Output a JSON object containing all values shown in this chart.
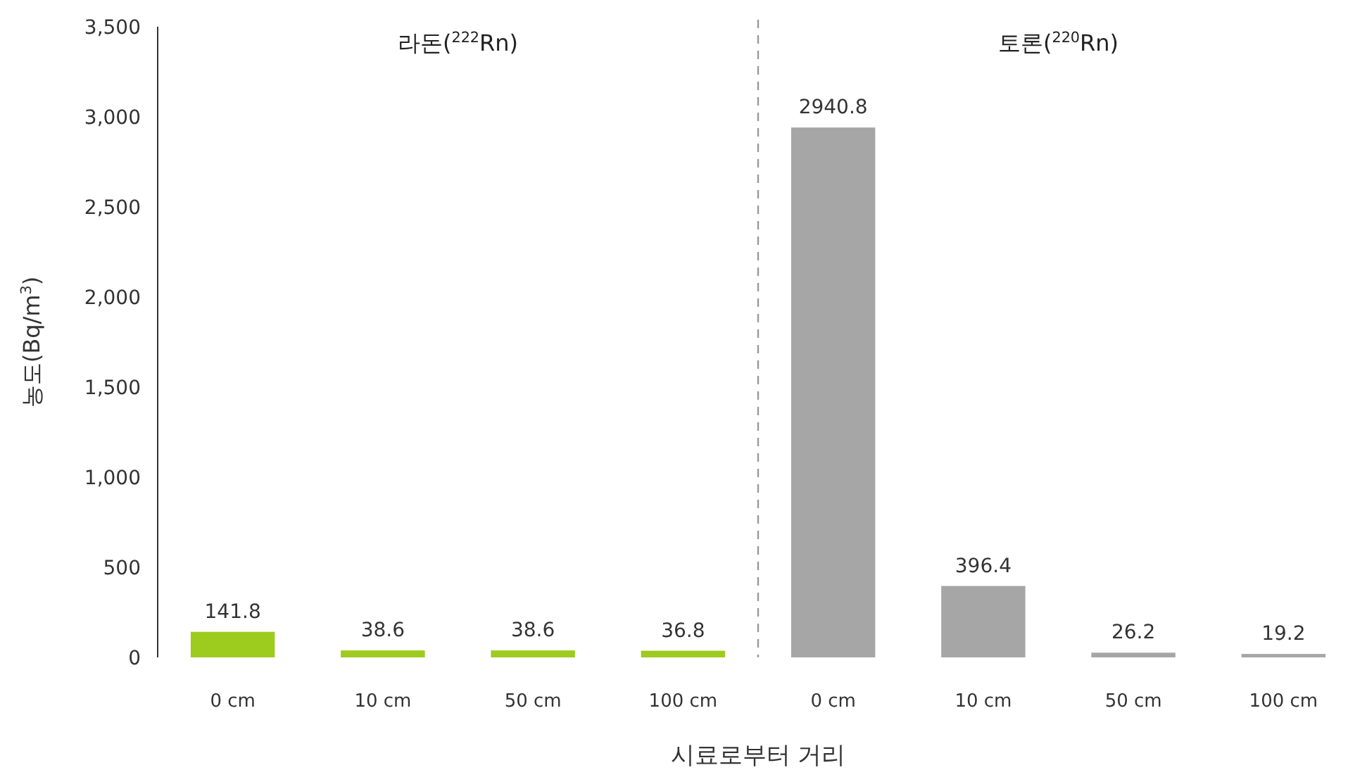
{
  "chart_data": {
    "type": "bar",
    "xlabel": "시료로부터 거리",
    "ylabel": "농도(Bq/m$^{3}$)",
    "categories": [
      "0 cm",
      "10 cm",
      "50 cm",
      "100 cm",
      "0 cm",
      "10 cm",
      "50 cm",
      "100 cm"
    ],
    "values": [
      141.8,
      38.6,
      38.6,
      36.8,
      2940.8,
      396.4,
      26.2,
      19.2
    ],
    "colors": [
      "#9dcb1e",
      "#9dcb1e",
      "#9dcb1e",
      "#9dcb1e",
      "#a6a6a6",
      "#a6a6a6",
      "#a6a6a6",
      "#a6a6a6"
    ],
    "data_labels": true,
    "ylim": [
      0,
      3500
    ],
    "yticks": [
      0,
      500,
      {
        "value": 1000,
        "label": "1,000"
      },
      {
        "value": 1500,
        "label": "1,500"
      },
      {
        "value": 2000,
        "label": "2,000"
      },
      {
        "value": 2500,
        "label": "2,500"
      },
      {
        "value": 3000,
        "label": "3,000"
      },
      {
        "value": 3500,
        "label": "3,500"
      }
    ],
    "annotations": [
      "라돈($^{222}$Rn)",
      "토론($^{220}$Rn)"
    ]
  }
}
